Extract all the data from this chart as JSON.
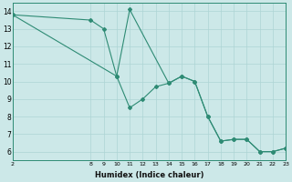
{
  "xlabel": "Humidex (Indice chaleur)",
  "xlim": [
    2,
    23
  ],
  "ylim": [
    5.5,
    14.5
  ],
  "xticks": [
    2,
    8,
    9,
    10,
    11,
    12,
    13,
    14,
    15,
    16,
    17,
    18,
    19,
    20,
    21,
    22,
    23
  ],
  "yticks": [
    6,
    7,
    8,
    9,
    10,
    11,
    12,
    13,
    14
  ],
  "bg_color": "#cce8e8",
  "grid_color": "#add4d4",
  "line_color": "#2e8b74",
  "series1": {
    "x": [
      2,
      8,
      9,
      10,
      11,
      12,
      13,
      14,
      15,
      16,
      17,
      18,
      19,
      20,
      21,
      22,
      23
    ],
    "y": [
      13.8,
      13.5,
      13.0,
      10.3,
      8.5,
      9.0,
      9.7,
      9.9,
      10.3,
      10.0,
      8.0,
      6.6,
      6.7,
      6.7,
      6.0,
      6.0,
      6.2
    ]
  },
  "series2": {
    "x": [
      2,
      10,
      11,
      14,
      15,
      16,
      17,
      18,
      19,
      20,
      21,
      22,
      23
    ],
    "y": [
      13.8,
      10.3,
      14.1,
      9.9,
      10.3,
      10.0,
      8.0,
      6.6,
      6.7,
      6.7,
      6.0,
      6.0,
      6.2
    ]
  }
}
